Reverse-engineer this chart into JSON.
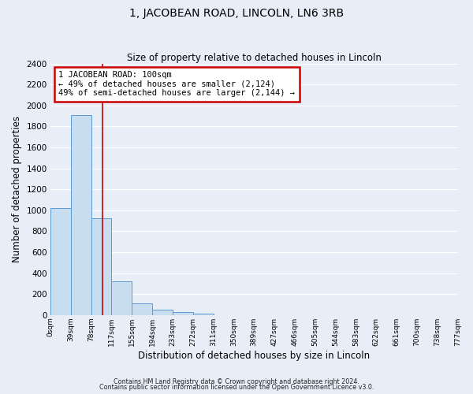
{
  "title": "1, JACOBEAN ROAD, LINCOLN, LN6 3RB",
  "subtitle": "Size of property relative to detached houses in Lincoln",
  "xlabel": "Distribution of detached houses by size in Lincoln",
  "ylabel": "Number of detached properties",
  "bar_values": [
    1020,
    1910,
    920,
    320,
    110,
    50,
    25,
    10,
    0,
    0,
    0,
    0,
    0,
    0,
    0,
    0,
    0,
    0,
    0,
    0
  ],
  "bin_labels": [
    "0sqm",
    "39sqm",
    "78sqm",
    "117sqm",
    "155sqm",
    "194sqm",
    "233sqm",
    "272sqm",
    "311sqm",
    "350sqm",
    "389sqm",
    "427sqm",
    "466sqm",
    "505sqm",
    "544sqm",
    "583sqm",
    "622sqm",
    "661sqm",
    "700sqm",
    "738sqm",
    "777sqm"
  ],
  "bar_color": "#c9ddf0",
  "bar_edge_color": "#5b9bd5",
  "plot_bg_color": "#e8eef8",
  "fig_bg_color": "#e8eef8",
  "grid_color": "#ffffff",
  "red_line_x": 2.564,
  "annotation_line1": "1 JACOBEAN ROAD: 100sqm",
  "annotation_line2": "← 49% of detached houses are smaller (2,124)",
  "annotation_line3": "49% of semi-detached houses are larger (2,144) →",
  "annotation_box_color": "#ffffff",
  "annotation_box_edge": "#cc0000",
  "ylim": [
    0,
    2400
  ],
  "yticks": [
    0,
    200,
    400,
    600,
    800,
    1000,
    1200,
    1400,
    1600,
    1800,
    2000,
    2200,
    2400
  ],
  "footer1": "Contains HM Land Registry data © Crown copyright and database right 2024.",
  "footer2": "Contains public sector information licensed under the Open Government Licence v3.0."
}
